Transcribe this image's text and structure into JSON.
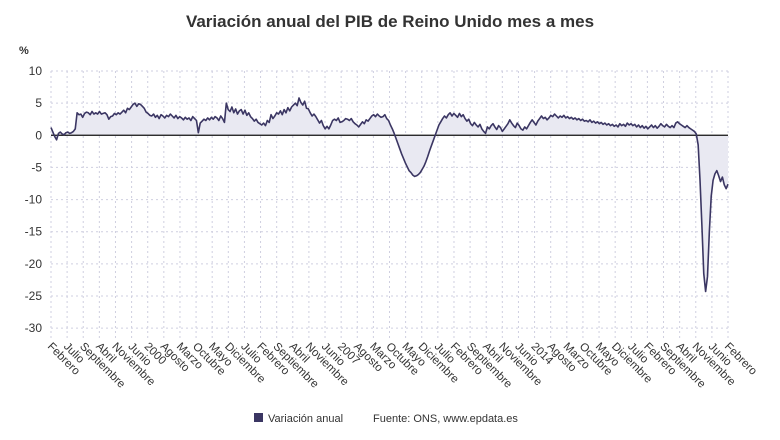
{
  "chart_data": {
    "type": "line",
    "title": "Variación anual del PIB de Reino Unido mes a mes",
    "ylabel": "%",
    "ylim": [
      -32,
      10
    ],
    "yticks": [
      10,
      5,
      0,
      -5,
      -10,
      -15,
      -20,
      -25,
      -30
    ],
    "grid": true,
    "legend_position": "bottom-center",
    "colors": {
      "line": "#3b3663",
      "fill": "#e9e9f2",
      "zero": "#111111",
      "grid": "#cfcfe0"
    },
    "x_tick_labels": [
      "Febrero",
      "Julio",
      "Septiembre",
      "Abril",
      "Noviembre",
      "Junio",
      "2000",
      "Agosto",
      "Marzo",
      "Octubre",
      "Mayo",
      "Diciembre",
      "Julio",
      "Febrero",
      "Septiembre",
      "Abril",
      "Noviembre",
      "Junio",
      "2007",
      "Agosto",
      "Marzo",
      "Octubre",
      "Mayo",
      "Diciembre",
      "Julio",
      "Febrero",
      "Septiembre",
      "Abril",
      "Noviembre",
      "Junio",
      "2014",
      "Agosto",
      "Marzo",
      "Octubre",
      "Mayo",
      "Diciembre",
      "Julio",
      "Febrero",
      "Septiembre",
      "Abril",
      "Noviembre",
      "Junio",
      "Febrero"
    ],
    "series": [
      {
        "name": "Variación anual",
        "values": [
          1.2,
          0.5,
          -0.2,
          -0.7,
          0.3,
          0.5,
          0.2,
          0.1,
          0.4,
          0.5,
          0.3,
          0.4,
          0.6,
          1.0,
          3.5,
          3.2,
          3.3,
          2.8,
          3.4,
          3.6,
          3.5,
          3.2,
          3.7,
          3.3,
          3.5,
          3.3,
          3.7,
          3.3,
          3.4,
          3.5,
          3.2,
          2.5,
          2.9,
          3.0,
          3.4,
          3.2,
          3.5,
          3.3,
          3.6,
          3.9,
          3.5,
          4.2,
          4.0,
          4.4,
          4.8,
          5.0,
          4.5,
          4.9,
          4.8,
          4.5,
          4.2,
          3.6,
          3.4,
          3.1,
          3.0,
          3.3,
          2.8,
          3.1,
          2.6,
          3.2,
          3.0,
          2.7,
          3.1,
          2.9,
          3.3,
          3.0,
          2.7,
          3.1,
          2.6,
          2.9,
          2.7,
          2.4,
          2.8,
          2.5,
          2.7,
          2.3,
          2.9,
          2.6,
          2.3,
          0.4,
          1.9,
          2.2,
          2.5,
          2.3,
          2.7,
          2.4,
          2.8,
          2.5,
          2.9,
          2.7,
          2.3,
          3.0,
          2.6,
          2.0,
          5.0,
          4.0,
          3.7,
          4.4,
          3.5,
          4.1,
          3.3,
          3.8,
          4.0,
          3.3,
          3.9,
          3.1,
          3.5,
          2.9,
          2.6,
          2.2,
          2.5,
          2.0,
          1.8,
          1.6,
          1.9,
          1.5,
          2.3,
          2.0,
          3.2,
          2.6,
          3.0,
          3.5,
          3.3,
          3.8,
          3.2,
          4.0,
          3.5,
          4.3,
          3.8,
          4.4,
          4.7,
          5.0,
          4.6,
          5.8,
          5.1,
          4.7,
          5.3,
          4.2,
          4.1,
          3.5,
          3.0,
          3.3,
          2.9,
          2.4,
          1.9,
          2.3,
          1.5,
          1.0,
          1.4,
          1.0,
          1.6,
          2.3,
          2.5,
          2.3,
          2.7,
          2.0,
          2.1,
          2.3,
          2.6,
          2.5,
          2.3,
          2.6,
          2.1,
          1.8,
          1.6,
          1.3,
          1.7,
          2.1,
          1.8,
          2.4,
          2.2,
          2.6,
          3.0,
          3.2,
          2.9,
          3.3,
          3.0,
          2.8,
          2.9,
          3.2,
          2.6,
          2.3,
          1.6,
          1.0,
          0.3,
          -0.5,
          -1.3,
          -2.1,
          -2.9,
          -3.6,
          -4.3,
          -4.9,
          -5.5,
          -5.8,
          -6.2,
          -6.4,
          -6.3,
          -6.1,
          -5.8,
          -5.3,
          -4.8,
          -4.1,
          -3.3,
          -2.4,
          -1.6,
          -0.8,
          0.0,
          0.8,
          1.6,
          2.1,
          2.6,
          3.0,
          2.7,
          3.2,
          3.5,
          3.0,
          3.4,
          3.1,
          2.8,
          3.4,
          2.9,
          3.2,
          2.6,
          2.2,
          2.5,
          1.8,
          1.5,
          2.0,
          1.6,
          1.3,
          1.7,
          1.0,
          0.6,
          0.3,
          1.3,
          1.0,
          1.5,
          1.8,
          1.3,
          0.9,
          1.5,
          1.2,
          0.6,
          1.0,
          1.4,
          1.8,
          2.4,
          1.9,
          1.5,
          1.2,
          1.9,
          1.5,
          1.0,
          0.8,
          1.3,
          1.0,
          1.5,
          2.0,
          2.4,
          2.0,
          1.6,
          2.2,
          2.6,
          3.0,
          2.6,
          2.8,
          2.4,
          2.7,
          3.1,
          2.9,
          3.3,
          3.0,
          2.7,
          3.0,
          2.8,
          3.1,
          2.7,
          2.9,
          2.6,
          2.8,
          2.5,
          2.7,
          2.4,
          2.6,
          2.3,
          2.5,
          2.2,
          2.3,
          2.1,
          2.4,
          2.0,
          2.2,
          1.9,
          2.1,
          1.8,
          2.0,
          1.7,
          1.9,
          1.6,
          1.8,
          1.5,
          1.7,
          1.4,
          1.6,
          1.3,
          1.8,
          1.5,
          1.7,
          1.4,
          1.9,
          1.6,
          1.8,
          1.5,
          1.7,
          1.3,
          1.6,
          1.2,
          1.5,
          1.1,
          1.4,
          1.0,
          1.3,
          1.6,
          1.2,
          1.5,
          1.1,
          1.4,
          1.8,
          1.5,
          1.3,
          1.7,
          1.4,
          1.2,
          1.5,
          1.2,
          1.9,
          2.1,
          1.8,
          1.6,
          1.4,
          1.2,
          1.5,
          1.2,
          1.0,
          0.8,
          0.6,
          0.2,
          -1.5,
          -7.0,
          -14.0,
          -21.5,
          -24.3,
          -22.0,
          -15.0,
          -9.5,
          -7.0,
          -6.0,
          -5.5,
          -6.3,
          -7.2,
          -6.5,
          -7.7,
          -8.3,
          -7.6
        ]
      }
    ]
  },
  "legend": {
    "label": "Variación anual"
  },
  "source": {
    "text": "Fuente: ONS, www.epdata.es"
  }
}
